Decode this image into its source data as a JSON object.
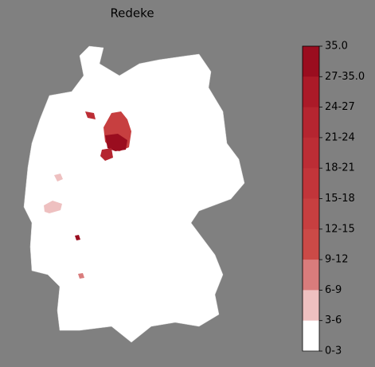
{
  "title": "Redeke",
  "colorbar": {
    "labels": [
      "35.0",
      "27-35.0",
      "24-27",
      "21-24",
      "18-21",
      "15-18",
      "12-15",
      "9-12",
      "6-9",
      "3-6",
      "0-3"
    ],
    "colors": [
      "#9a0d1f",
      "#ab1a28",
      "#b52530",
      "#bc2d35",
      "#c2353a",
      "#c73f40",
      "#cb4a47",
      "#d97c7c",
      "#eec0c0",
      "#ffffff"
    ]
  }
}
